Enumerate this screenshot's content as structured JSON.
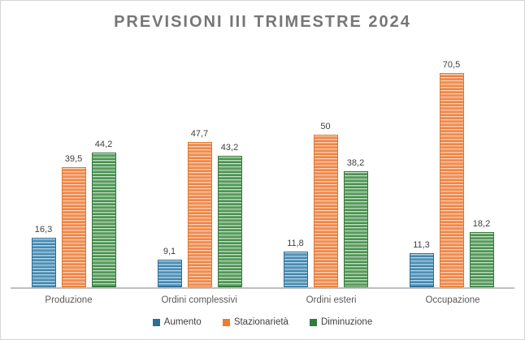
{
  "title": "PREVISIONI III TRIMESTRE 2024",
  "colors": {
    "title_text": "#767676",
    "axis_line": "#bfbfbf",
    "series_aumento": "#2c6e96",
    "series_stazionarieta": "#ed7d31",
    "series_diminuzione": "#2e7d3b"
  },
  "chart_data": {
    "type": "bar",
    "title": "PREVISIONI III TRIMESTRE 2024",
    "categories": [
      "Produzione",
      "Ordini complessivi",
      "Ordini esteri",
      "Occupazione"
    ],
    "series": [
      {
        "name": "Aumento",
        "color": "#2c6e96",
        "values": [
          16.3,
          9.1,
          11.8,
          11.3
        ],
        "labels": [
          "16,3",
          "9,1",
          "11,8",
          "11,3"
        ]
      },
      {
        "name": "Stazionarietà",
        "color": "#ed7d31",
        "values": [
          39.5,
          47.7,
          50,
          70.5
        ],
        "labels": [
          "39,5",
          "47,7",
          "50",
          "70,5"
        ]
      },
      {
        "name": "Diminuzione",
        "color": "#2e7d3b",
        "values": [
          44.2,
          43.2,
          38.2,
          18.2
        ],
        "labels": [
          "44,2",
          "43,2",
          "38,2",
          "18,2"
        ]
      }
    ],
    "xlabel": "",
    "ylabel": "",
    "ylim": [
      0,
      75
    ],
    "gridlines": false,
    "data_labels": true,
    "legend_position": "bottom"
  }
}
